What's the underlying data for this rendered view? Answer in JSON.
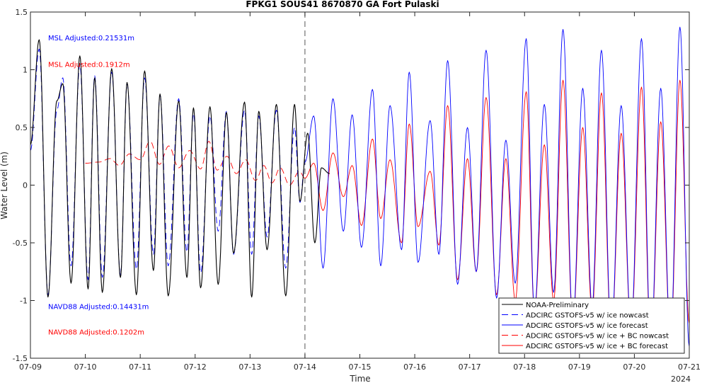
{
  "chart_data": {
    "type": "line",
    "title": "FPKG1 SOUS41 8670870 GA Fort Pulaski",
    "xlabel": "Time",
    "ylabel": "Water Level (m)",
    "year_label": "2024",
    "xlim": [
      "2024-07-09",
      "2024-07-21"
    ],
    "ylim": [
      -1.5,
      1.5
    ],
    "x_ticks": [
      "07-09",
      "07-10",
      "07-11",
      "07-12",
      "07-13",
      "07-14",
      "07-15",
      "07-16",
      "07-17",
      "07-18",
      "07-19",
      "07-20",
      "07-21"
    ],
    "y_ticks": [
      -1.5,
      -1,
      -0.5,
      0,
      0.5,
      1,
      1.5
    ],
    "y_tick_labels": [
      "-1.5",
      "-1",
      "-0.5",
      "0",
      "0.5",
      "1",
      "1.5"
    ],
    "forecast_start": "2024-07-14",
    "legend_position": "bottom-right",
    "annotations": [
      {
        "text": "MSL Adjusted:0.21531m",
        "color": "#0000ff",
        "x": "07-09",
        "y": 1.28
      },
      {
        "text": "MSL Adjusted:0.1912m",
        "color": "#ff0000",
        "x": "07-09",
        "y": 1.05
      },
      {
        "text": "NAVD88 Adjusted:0.14431m",
        "color": "#0000ff",
        "x": "07-09",
        "y": -1.05
      },
      {
        "text": "NAVD88 Adjusted:0.1202m",
        "color": "#ff0000",
        "x": "07-09",
        "y": -1.27
      }
    ],
    "series": [
      {
        "name": "NOAA-Preliminary",
        "color": "#000000",
        "dash": "solid",
        "x_unit": "days since 07-09",
        "x": [
          0.0,
          0.16,
          0.32,
          0.48,
          0.59,
          0.74,
          0.9,
          1.05,
          1.17,
          1.31,
          1.48,
          1.64,
          1.76,
          1.93,
          2.08,
          2.24,
          2.36,
          2.51,
          2.7,
          2.85,
          2.97,
          3.1,
          3.27,
          3.42,
          3.57,
          3.7,
          3.9,
          4.03,
          4.16,
          4.31,
          4.48,
          4.65,
          4.81,
          4.91,
          5.05,
          5.18,
          5.3,
          5.45
        ],
        "y": [
          0.35,
          1.26,
          -0.97,
          0.73,
          0.88,
          -0.85,
          1.12,
          -0.9,
          0.93,
          -0.93,
          1.01,
          -0.8,
          0.89,
          -0.95,
          0.99,
          -0.74,
          0.79,
          -0.96,
          0.73,
          -0.8,
          0.67,
          -0.89,
          0.68,
          -0.86,
          0.63,
          -0.59,
          0.72,
          -0.97,
          0.64,
          -0.56,
          0.7,
          -0.96,
          0.7,
          -0.14,
          0.45,
          -0.5,
          0.15,
          0.1
        ]
      },
      {
        "name": "ADCIRC GSTOFS-v5 w/ ice nowcast",
        "color": "#0000ff",
        "dash": "dashed",
        "x_unit": "days since 07-09",
        "x": [
          0.0,
          0.16,
          0.32,
          0.48,
          0.59,
          0.74,
          0.9,
          1.05,
          1.17,
          1.31,
          1.48,
          1.64,
          1.76,
          1.93,
          2.08,
          2.24,
          2.36,
          2.51,
          2.7,
          2.85,
          2.97,
          3.1,
          3.27,
          3.42,
          3.57,
          3.7,
          3.9,
          4.03,
          4.16,
          4.31,
          4.48,
          4.65,
          4.81,
          4.91,
          5.0
        ],
        "y": [
          0.3,
          1.18,
          -0.95,
          0.65,
          0.93,
          -0.7,
          1.05,
          -0.82,
          0.95,
          -0.8,
          0.98,
          -0.78,
          0.88,
          -0.73,
          0.93,
          -0.6,
          0.78,
          -0.7,
          0.75,
          -0.58,
          0.62,
          -0.76,
          0.6,
          -0.4,
          0.64,
          -0.6,
          0.65,
          -0.6,
          0.6,
          -0.45,
          0.65,
          -0.72,
          0.5,
          -0.15,
          0.2
        ]
      },
      {
        "name": "ADCIRC GSTOFS-v5 w/ ice forecast",
        "color": "#0000ff",
        "dash": "solid",
        "x_unit": "days since 07-09",
        "x": [
          5.0,
          5.16,
          5.33,
          5.51,
          5.7,
          5.86,
          6.03,
          6.23,
          6.38,
          6.55,
          6.76,
          6.9,
          7.06,
          7.28,
          7.44,
          7.6,
          7.78,
          7.96,
          8.12,
          8.3,
          8.49,
          8.66,
          8.83,
          9.03,
          9.18,
          9.36,
          9.53,
          9.7,
          9.88,
          10.06,
          10.23,
          10.4,
          10.58,
          10.76,
          10.94,
          11.13,
          11.3,
          11.48,
          11.66,
          11.83,
          12.0
        ],
        "y": [
          0.2,
          0.6,
          -0.72,
          0.75,
          -0.4,
          0.61,
          -0.54,
          0.83,
          -0.7,
          0.69,
          -0.56,
          0.98,
          -0.67,
          0.56,
          -0.6,
          1.08,
          -0.86,
          0.5,
          -0.75,
          1.17,
          -0.98,
          0.39,
          -0.85,
          1.27,
          -1.1,
          0.7,
          -0.93,
          1.35,
          -1.2,
          0.84,
          -1.05,
          1.17,
          -1.3,
          0.69,
          -1.25,
          1.27,
          -1.4,
          0.84,
          -1.35,
          1.37,
          -1.4
        ]
      },
      {
        "name": "ADCIRC GSTOFS-v5 w/ ice + BC nowcast",
        "color": "#ff0000",
        "dash": "dashed",
        "x_unit": "days since 07-09",
        "x": [
          1.0,
          1.25,
          1.45,
          1.62,
          1.8,
          2.0,
          2.18,
          2.35,
          2.52,
          2.7,
          2.9,
          3.1,
          3.25,
          3.4,
          3.58,
          3.75,
          3.92,
          4.1,
          4.25,
          4.4,
          4.55,
          4.72,
          4.9,
          5.0
        ],
        "y": [
          0.19,
          0.2,
          0.23,
          0.17,
          0.27,
          0.22,
          0.38,
          0.18,
          0.34,
          0.15,
          0.3,
          0.14,
          0.38,
          0.13,
          0.25,
          0.1,
          0.22,
          0.04,
          0.17,
          0.02,
          0.15,
          0.0,
          0.12,
          0.06
        ]
      },
      {
        "name": "ADCIRC GSTOFS-v5 w/ ice + BC forecast",
        "color": "#ff0000",
        "dash": "solid",
        "x_unit": "days since 07-09",
        "x": [
          5.0,
          5.16,
          5.33,
          5.51,
          5.7,
          5.86,
          6.03,
          6.23,
          6.38,
          6.55,
          6.76,
          6.9,
          7.06,
          7.28,
          7.44,
          7.6,
          7.78,
          7.96,
          8.12,
          8.3,
          8.49,
          8.66,
          8.83,
          9.03,
          9.18,
          9.36,
          9.53,
          9.7,
          9.88,
          10.06,
          10.23,
          10.4,
          10.58,
          10.76,
          10.94,
          11.13,
          11.3,
          11.48,
          11.66,
          11.83,
          12.0
        ],
        "y": [
          0.06,
          0.19,
          -0.22,
          0.28,
          -0.1,
          0.17,
          -0.35,
          0.4,
          -0.29,
          0.22,
          -0.5,
          0.53,
          -0.36,
          0.12,
          -0.52,
          0.69,
          -0.82,
          0.23,
          -0.75,
          0.76,
          -0.95,
          0.23,
          -1.0,
          0.81,
          -1.1,
          0.35,
          -1.0,
          0.91,
          -1.2,
          0.5,
          -1.1,
          0.8,
          -1.3,
          0.45,
          -1.25,
          0.85,
          -1.4,
          0.55,
          -1.35,
          0.91,
          -1.2
        ]
      }
    ]
  }
}
